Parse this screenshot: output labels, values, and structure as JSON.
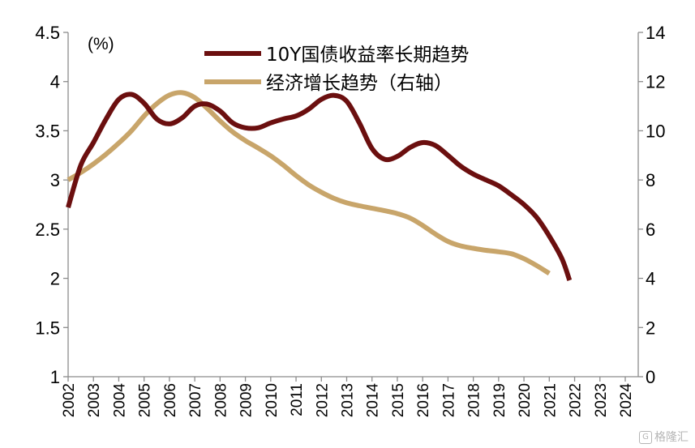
{
  "chart_data": {
    "type": "line",
    "unit_label": "(%)",
    "x": [
      "2002",
      "2003",
      "2004",
      "2005",
      "2006",
      "2007",
      "2008",
      "2009",
      "2010",
      "2011",
      "2012",
      "2013",
      "2014",
      "2015",
      "2016",
      "2017",
      "2018",
      "2019",
      "2020",
      "2021",
      "2022",
      "2023",
      "2024"
    ],
    "y_left": {
      "min": 1,
      "max": 4.5,
      "ticks": [
        "1",
        "1.5",
        "2",
        "2.5",
        "3",
        "3.5",
        "4",
        "4.5"
      ]
    },
    "y_right": {
      "min": 0,
      "max": 14,
      "ticks": [
        "0",
        "2",
        "4",
        "6",
        "8",
        "10",
        "12",
        "14"
      ]
    },
    "series": [
      {
        "name": "10Y国债收益率长期趋势",
        "axis": "left",
        "color": "#6b0f0f",
        "points": [
          [
            2002.0,
            2.72
          ],
          [
            2002.5,
            3.15
          ],
          [
            2003.0,
            3.38
          ],
          [
            2003.5,
            3.62
          ],
          [
            2004.0,
            3.82
          ],
          [
            2004.5,
            3.87
          ],
          [
            2005.0,
            3.78
          ],
          [
            2005.5,
            3.62
          ],
          [
            2006.0,
            3.57
          ],
          [
            2006.5,
            3.63
          ],
          [
            2007.0,
            3.75
          ],
          [
            2007.5,
            3.77
          ],
          [
            2008.0,
            3.7
          ],
          [
            2008.5,
            3.58
          ],
          [
            2009.0,
            3.53
          ],
          [
            2009.5,
            3.53
          ],
          [
            2010.0,
            3.58
          ],
          [
            2010.5,
            3.62
          ],
          [
            2011.0,
            3.65
          ],
          [
            2011.5,
            3.72
          ],
          [
            2012.0,
            3.82
          ],
          [
            2012.5,
            3.86
          ],
          [
            2013.0,
            3.8
          ],
          [
            2013.5,
            3.58
          ],
          [
            2014.0,
            3.32
          ],
          [
            2014.5,
            3.21
          ],
          [
            2015.0,
            3.24
          ],
          [
            2015.5,
            3.33
          ],
          [
            2016.0,
            3.38
          ],
          [
            2016.5,
            3.35
          ],
          [
            2017.0,
            3.25
          ],
          [
            2017.5,
            3.14
          ],
          [
            2018.0,
            3.06
          ],
          [
            2018.5,
            3.0
          ],
          [
            2019.0,
            2.94
          ],
          [
            2019.5,
            2.85
          ],
          [
            2020.0,
            2.75
          ],
          [
            2020.5,
            2.62
          ],
          [
            2021.0,
            2.43
          ],
          [
            2021.5,
            2.2
          ],
          [
            2021.8,
            1.98
          ]
        ]
      },
      {
        "name": "经济增长趋势（右轴）",
        "axis": "right",
        "color": "#c8a56a",
        "points": [
          [
            2002.0,
            8.0
          ],
          [
            2002.5,
            8.3
          ],
          [
            2003.0,
            8.65
          ],
          [
            2003.5,
            9.05
          ],
          [
            2004.0,
            9.5
          ],
          [
            2004.5,
            10.0
          ],
          [
            2005.0,
            10.6
          ],
          [
            2005.5,
            11.1
          ],
          [
            2006.0,
            11.45
          ],
          [
            2006.5,
            11.55
          ],
          [
            2007.0,
            11.35
          ],
          [
            2007.5,
            10.9
          ],
          [
            2008.0,
            10.4
          ],
          [
            2008.5,
            9.95
          ],
          [
            2009.0,
            9.6
          ],
          [
            2009.5,
            9.3
          ],
          [
            2010.0,
            8.98
          ],
          [
            2010.5,
            8.6
          ],
          [
            2011.0,
            8.18
          ],
          [
            2011.5,
            7.8
          ],
          [
            2012.0,
            7.5
          ],
          [
            2012.5,
            7.25
          ],
          [
            2013.0,
            7.07
          ],
          [
            2013.5,
            6.95
          ],
          [
            2014.0,
            6.85
          ],
          [
            2014.5,
            6.75
          ],
          [
            2015.0,
            6.63
          ],
          [
            2015.5,
            6.45
          ],
          [
            2016.0,
            6.15
          ],
          [
            2016.5,
            5.8
          ],
          [
            2017.0,
            5.5
          ],
          [
            2017.5,
            5.32
          ],
          [
            2018.0,
            5.22
          ],
          [
            2018.5,
            5.14
          ],
          [
            2019.0,
            5.08
          ],
          [
            2019.5,
            5.0
          ],
          [
            2020.0,
            4.8
          ],
          [
            2020.5,
            4.52
          ],
          [
            2021.0,
            4.2
          ]
        ]
      }
    ],
    "legend_position": "top-center",
    "grid": false
  },
  "watermark": {
    "text": "格隆汇",
    "icon": "G"
  }
}
